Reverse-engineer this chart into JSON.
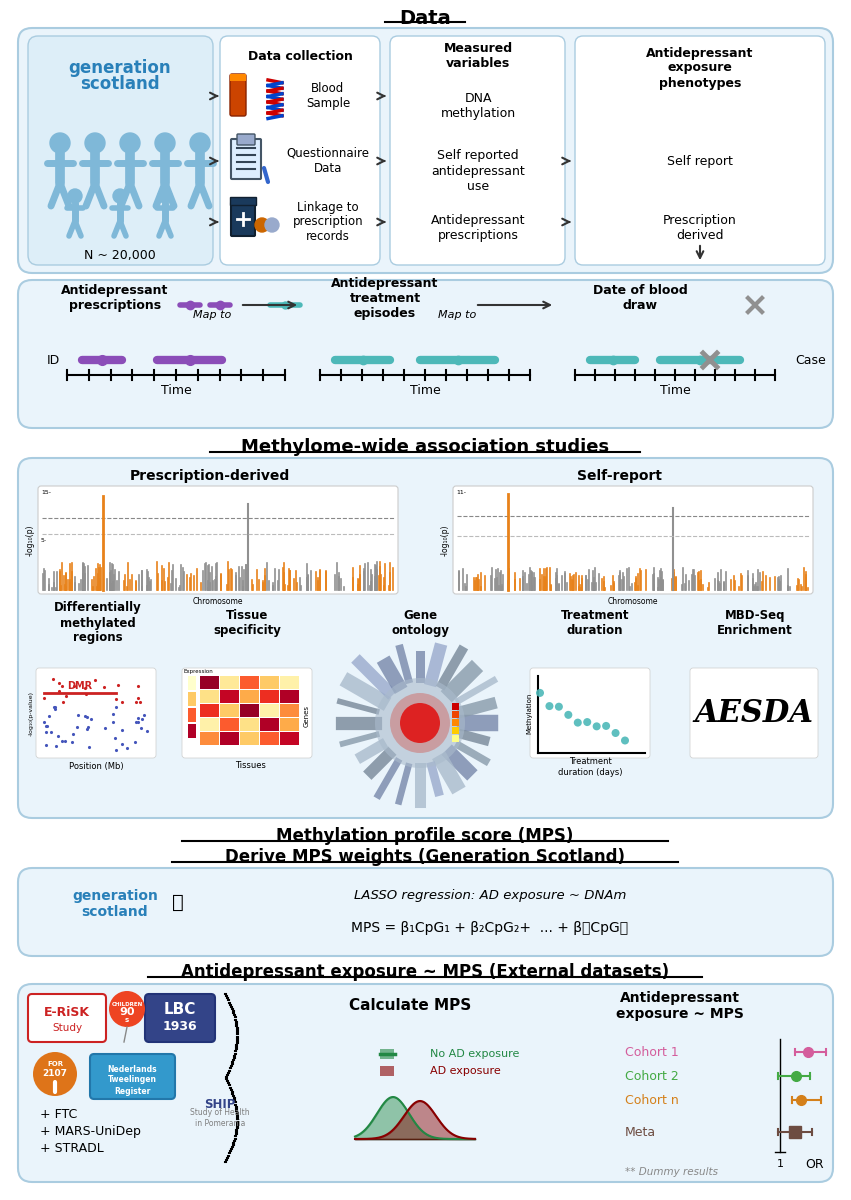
{
  "title_data": "Data",
  "title_mwas": "Methylome-wide association studies",
  "title_mps1": "Methylation profile score (MPS)",
  "title_mps2": "Derive MPS weights (Generation Scotland)",
  "title_ad": "Antidepressant exposure ~ MPS (External datasets)",
  "s1": {
    "data_collection": "Data collection",
    "measured_variables": "Measured\nvariables",
    "ad_exposure": "Antidepressant\nexposure\nphenotypes",
    "blood_sample": "Blood\nSample",
    "questionnaire": "Questionnaire\nData",
    "linkage": "Linkage to\nprescription\nrecords",
    "dna_meth": "DNA\nmethylation",
    "self_reported": "Self reported\nantidepressant\nuse",
    "ad_prescriptions_var": "Antidepressant\nprescriptions",
    "self_report": "Self report",
    "prescription_derived": "Prescription\nderived",
    "n_label": "N ~ 20,000"
  },
  "s2": {
    "ad_prescriptions": "Antidepressant\nprescriptions",
    "ad_treatment": "Antidepressant\ntreatment\nepisodes",
    "map_to": "Map to",
    "date_blood": "Date of blood\ndraw",
    "id_label": "ID",
    "case_label": "Case",
    "time_label": "Time"
  },
  "s3": {
    "prescription_derived": "Prescription-derived",
    "self_report": "Self-report",
    "diff_meth": "Differentially\nmethylated\nregions",
    "tissue_spec": "Tissue\nspecificity",
    "gene_onto": "Gene\nontology",
    "treatment_dur": "Treatment\nduration",
    "mbd_seq": "MBD-Seq\nEnrichment",
    "dmr_label": "DMR",
    "position_mb": "Position (Mb)",
    "tissues": "Tissues",
    "genes": "Genes",
    "treatment_days": "Treatment\nduration (days)",
    "methylation": "Methylation"
  },
  "s4": {
    "lasso": "LASSO regression: AD exposure ~ DNAm",
    "mps_formula": "MPS = β₁CpG₁ + β₂CpG₂+  ... + β₝CpG₝"
  },
  "s5": {
    "calculate_mps": "Calculate MPS",
    "ad_exposure_mps": "Antidepressant\nexposure ~ MPS",
    "cohort1": "Cohort 1",
    "cohort2": "Cohort 2",
    "cohort_n": "Cohort n",
    "meta": "Meta",
    "no_ad": "No AD exposure",
    "ad_exp": "AD exposure",
    "or_label": "OR",
    "dummy": "** Dummy results",
    "ftc": "+ FTC",
    "mars": "+ MARS-UniDep",
    "stradl": "+ STRADL"
  },
  "colors": {
    "light_blue_bg": "#d6eaf5",
    "medium_blue": "#1a5276",
    "gen_blue": "#2980b9",
    "purple": "#8b4db8",
    "teal": "#4db8b8",
    "orange": "#e8821a",
    "gray": "#909090",
    "light_gray": "#cccccc",
    "dark_gray": "#404040",
    "red": "#cc2200",
    "green_dark": "#2e7d32",
    "red_dark": "#8b0000",
    "pink": "#d45d9c",
    "orange2": "#d4801a",
    "brown": "#6d4c41",
    "white": "#ffffff",
    "box_bg": "#eaf4fb",
    "box_border": "#aacce0",
    "gs_box": "#ddeef8"
  }
}
